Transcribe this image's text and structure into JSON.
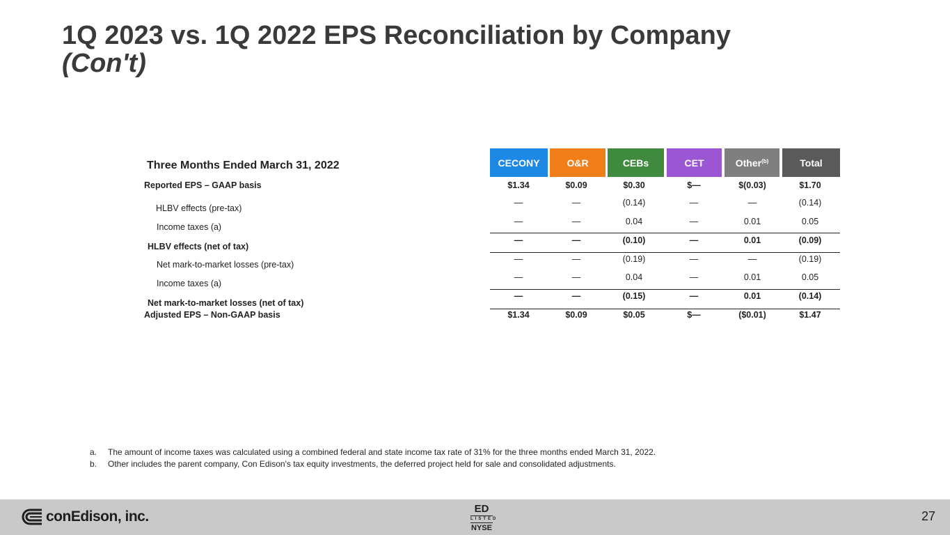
{
  "title": {
    "line1": "1Q 2023 vs. 1Q 2022 EPS Reconciliation by Company",
    "line2": "(Con't)"
  },
  "table": {
    "period_label": "Three Months Ended March 31, 2022",
    "columns": [
      {
        "label": "CECONY",
        "sup": "",
        "color": "#1e88e5"
      },
      {
        "label": "O&R",
        "sup": "",
        "color": "#f07f1a"
      },
      {
        "label": "CEBs",
        "sup": "",
        "color": "#3f8a3f"
      },
      {
        "label": "CET",
        "sup": "",
        "color": "#9b57d3"
      },
      {
        "label": "Other",
        "sup": "(b)",
        "color": "#7f7f7f"
      },
      {
        "label": "Total",
        "sup": "",
        "color": "#5a5a5a"
      }
    ],
    "rows": [
      {
        "label": "Reported EPS – GAAP basis",
        "values": [
          "$1.34",
          "$0.09",
          "$0.30",
          "$—",
          "$(0.03)",
          "$1.70"
        ]
      },
      {
        "label": "HLBV effects (pre-tax)",
        "values": [
          "—",
          "—",
          "(0.14)",
          "—",
          "—",
          "(0.14)"
        ]
      },
      {
        "label": "Income taxes (a)",
        "values": [
          "—",
          "—",
          "0.04",
          "—",
          "0.01",
          "0.05"
        ]
      },
      {
        "label": "HLBV effects (net of tax)",
        "values": [
          "—",
          "—",
          "(0.10)",
          "—",
          "0.01",
          "(0.09)"
        ]
      },
      {
        "label": "Net mark-to-market losses (pre-tax)",
        "values": [
          "—",
          "—",
          "(0.19)",
          "—",
          "—",
          "(0.19)"
        ]
      },
      {
        "label": "Income taxes (a)",
        "values": [
          "—",
          "—",
          "0.04",
          "—",
          "0.01",
          "0.05"
        ]
      },
      {
        "label": "Net mark-to-market losses (net of tax)",
        "values": [
          "—",
          "—",
          "(0.15)",
          "—",
          "0.01",
          "(0.14)"
        ]
      },
      {
        "label": "Adjusted EPS – Non-GAAP basis",
        "values": [
          "$1.34",
          "$0.09",
          "$0.05",
          "$—",
          "($0.01)",
          "$1.47"
        ]
      }
    ]
  },
  "footnotes": [
    {
      "marker": "a.",
      "text": "The amount of income taxes was calculated using a combined federal and state income tax rate of 31% for the three months ended March 31, 2022."
    },
    {
      "marker": "b.",
      "text": "Other includes the parent company, Con Edison's tax equity investments, the deferred project held for sale and consolidated adjustments."
    }
  ],
  "footer": {
    "logo_text": "conEdison, inc.",
    "ticker": "ED",
    "listed": "LISTED",
    "exchange": "NYSE",
    "page_number": "27"
  }
}
